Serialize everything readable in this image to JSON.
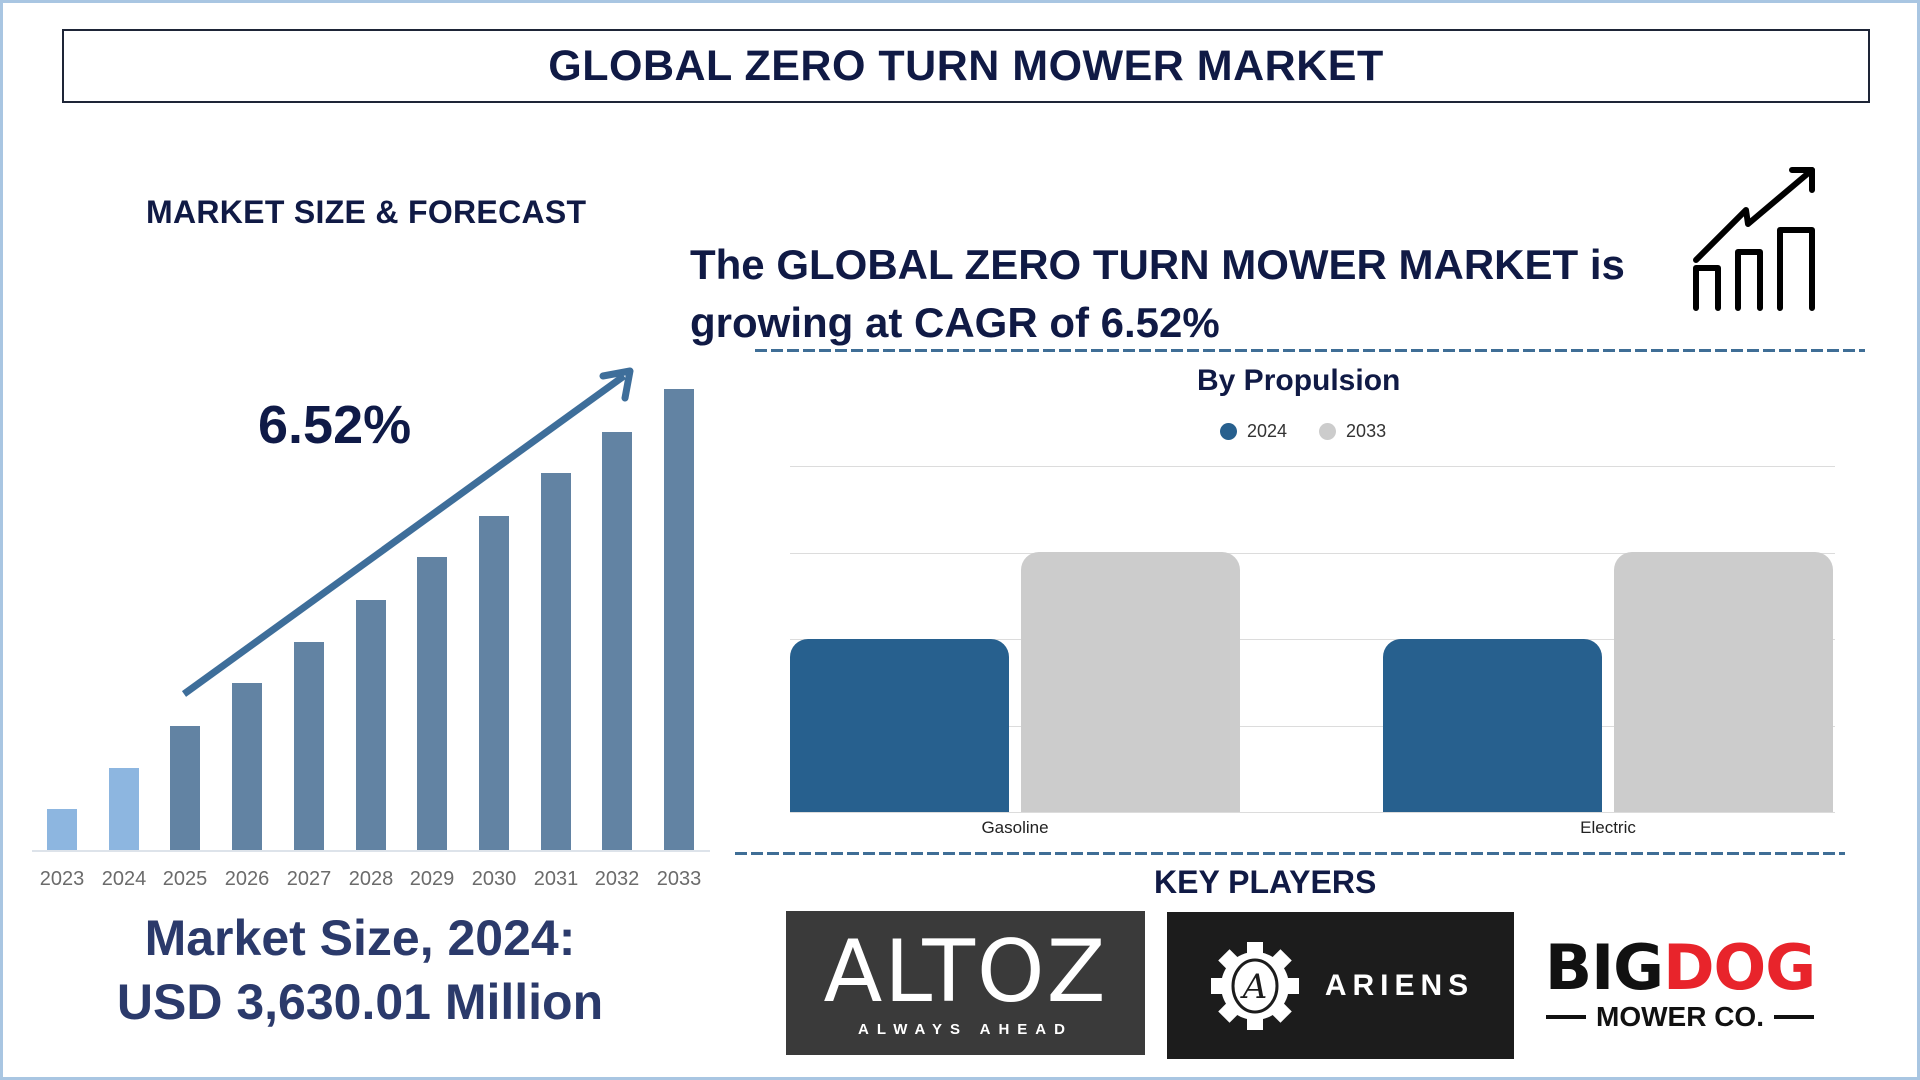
{
  "title": "GLOBAL ZERO TURN MOWER MARKET",
  "market_forecast": {
    "section_title": "MARKET SIZE & FORECAST",
    "cagr_label": "6.52%",
    "market_size_line1": "Market Size, 2024:",
    "market_size_line2": "USD 3,630.01 Million"
  },
  "cagr_statement": {
    "line1": "The GLOBAL ZERO TURN MOWER MARKET is",
    "line2": "growing at CAGR of 6.52%",
    "icon": "growth-chart-icon"
  },
  "propulsion": {
    "title": "By Propulsion",
    "legend": [
      {
        "label": "2024",
        "color": "#27608e"
      },
      {
        "label": "2033",
        "color": "#cccccc"
      }
    ],
    "categories": [
      "Gasoline",
      "Electric"
    ]
  },
  "key_players": {
    "title": "KEY PLAYERS",
    "logos": [
      {
        "name": "ALTOZ",
        "tagline": "ALWAYS AHEAD"
      },
      {
        "name": "ARIENS"
      },
      {
        "name_part1": "BIG",
        "name_part2": "DOG",
        "tagline": "MOWER CO."
      }
    ]
  },
  "colors": {
    "navy": "#101a45",
    "historic_bar": "#8db6e0",
    "forecast_bar": "#6283a3",
    "arrow": "#3e6e9a",
    "frame": "#a9c6e2",
    "dash": "#3f6e96"
  },
  "chart_data": [
    {
      "type": "bar",
      "title": "MARKET SIZE & FORECAST",
      "categories": [
        "2023",
        "2024",
        "2025",
        "2026",
        "2027",
        "2028",
        "2029",
        "2030",
        "2031",
        "2032",
        "2033"
      ],
      "values": [
        41,
        82,
        124,
        167,
        208,
        250,
        293,
        334,
        377,
        418,
        461
      ],
      "value_note": "relative bar heights (unlabeled); 2023-2024 historic, 2025-2033 forecast",
      "annotation": "6.52%",
      "xlabel": "",
      "ylabel": "",
      "grid": false,
      "legend": null
    },
    {
      "type": "bar",
      "title": "By Propulsion",
      "categories": [
        "Gasoline",
        "Electric"
      ],
      "series": [
        {
          "name": "2024",
          "values": [
            2,
            2
          ]
        },
        {
          "name": "2033",
          "values": [
            3,
            3
          ]
        }
      ],
      "value_note": "relative gridline units (no axis labels shown)",
      "ylim": [
        0,
        4
      ],
      "grid": true,
      "legend_position": "top"
    }
  ]
}
